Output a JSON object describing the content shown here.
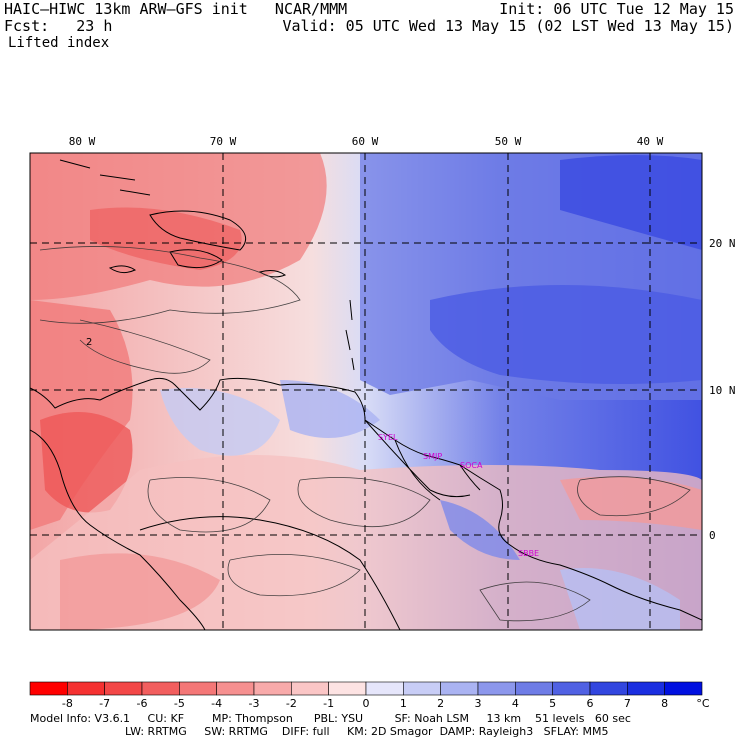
{
  "header": {
    "model_line": "HAIC–HIWC 13km ARW–GFS init   NCAR/MMM",
    "init": "Init: 06 UTC Tue 12 May 15",
    "fcst_line": "Fcst:   23 h",
    "valid": "Valid: 05 UTC Wed 13 May 15 (02 LST Wed 13 May 15)",
    "field": "Lifted index"
  },
  "map": {
    "lon_labels": [
      "80 W",
      "70 W",
      "60 W",
      "50 W",
      "40 W"
    ],
    "lat_labels": [
      "20 N",
      "10 N",
      "0"
    ],
    "stations": [
      {
        "name": "SYEL"
      },
      {
        "name": "SMJP"
      },
      {
        "name": "SOCA"
      },
      {
        "name": "SBBE"
      }
    ],
    "contour_label": "2",
    "colors": {
      "negative": "#f26b6b",
      "positive": "#3c4ce0",
      "land": "#000000"
    }
  },
  "colorbar": {
    "ticks": [
      "-8",
      "-7",
      "-6",
      "-5",
      "-4",
      "-3",
      "-2",
      "-1",
      "0",
      "1",
      "2",
      "3",
      "4",
      "5",
      "6",
      "7",
      "8"
    ],
    "unit": "°C",
    "colors": [
      "#ff0000",
      "#f53131",
      "#f34747",
      "#f25e5e",
      "#f47777",
      "#f69090",
      "#f8aaaa",
      "#fbc6c6",
      "#fde3e3",
      "#e6e6fb",
      "#c8cdf6",
      "#aab3f2",
      "#8c97ec",
      "#6e7ce6",
      "#5061e3",
      "#3246df",
      "#1a2ee0",
      "#0010e0"
    ]
  },
  "footer": {
    "line1": "Model Info: V3.6.1     CU: KF        MP: Thompson      PBL: YSU         SF: Noah LSM     13 km    51 levels   60 sec",
    "line2": "LW: RRTMG     SW: RRTMG    DIFF: full     KM: 2D Smagor  DAMP: Rayleigh3   SFLAY: MM5"
  }
}
